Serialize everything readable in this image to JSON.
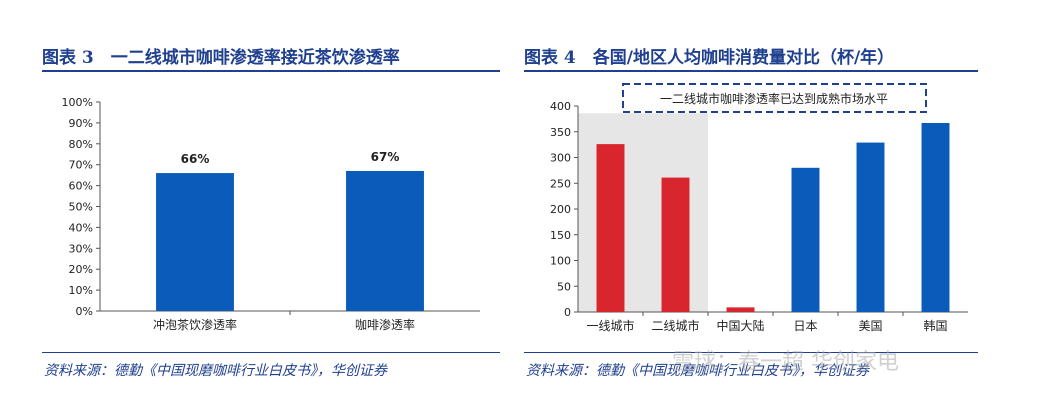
{
  "left_panel": {
    "title": "图表 3　一二线城市咖啡渗透率接近茶饮渗透率",
    "source": "资料来源：德勤《中国现磨咖啡行业白皮书》，华创证券"
  },
  "right_panel": {
    "title": "图表 4　各国/地区人均咖啡消费量对比（杯/年）",
    "source": "资料来源：德勤《中国现磨咖啡行业白皮书》，华创证券"
  },
  "watermark": "雪球：春一超 华创家电",
  "chart_data": [
    {
      "type": "bar",
      "title": "一二线城市咖啡渗透率接近茶饮渗透率",
      "categories": [
        "冲泡茶饮渗透率",
        "咖啡渗透率"
      ],
      "values": [
        66,
        67
      ],
      "data_labels": [
        "66%",
        "67%"
      ],
      "y_ticks": [
        "0%",
        "10%",
        "20%",
        "30%",
        "40%",
        "50%",
        "60%",
        "70%",
        "80%",
        "90%",
        "100%"
      ],
      "ylim": [
        0,
        100
      ],
      "bar_color": "#0b5cba",
      "grid": false
    },
    {
      "type": "bar",
      "title": "各国/地区人均咖啡消费量对比（杯/年）",
      "categories": [
        "一线城市",
        "二线城市",
        "中国大陆",
        "日本",
        "美国",
        "韩国"
      ],
      "values": [
        326,
        261,
        9,
        280,
        329,
        367
      ],
      "bar_colors": [
        "#d9262e",
        "#d9262e",
        "#d9262e",
        "#0b5cba",
        "#0b5cba",
        "#0b5cba"
      ],
      "y_ticks": [
        "0",
        "50",
        "100",
        "150",
        "200",
        "250",
        "300",
        "350",
        "400"
      ],
      "ylim": [
        0,
        400
      ],
      "annotation": "一二线城市咖啡渗透率已达到成熟市场水平",
      "highlight_categories": [
        "一线城市",
        "二线城市"
      ],
      "highlight_color": "#e6e6e6",
      "grid": false
    }
  ]
}
